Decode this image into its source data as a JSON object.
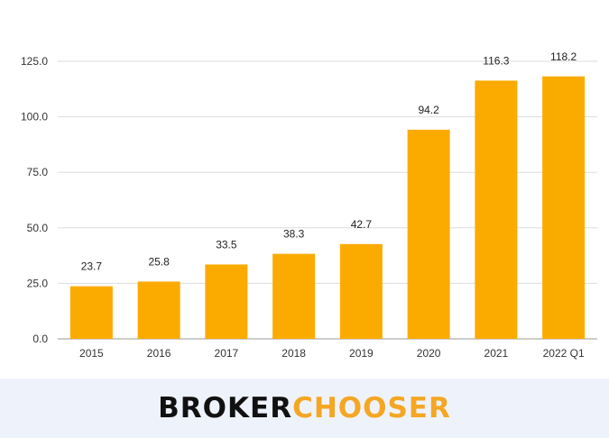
{
  "chart_data": {
    "type": "bar",
    "categories": [
      "2015",
      "2016",
      "2017",
      "2018",
      "2019",
      "2020",
      "2021",
      "2022 Q1"
    ],
    "values": [
      23.7,
      25.8,
      33.5,
      38.3,
      42.7,
      94.2,
      116.3,
      118.2
    ],
    "data_labels": [
      "23.7",
      "25.8",
      "33.5",
      "38.3",
      "42.7",
      "94.2",
      "116.3",
      "118.2"
    ],
    "yticks": [
      "0.0",
      "25.0",
      "50.0",
      "75.0",
      "100.0",
      "125.0"
    ],
    "ytick_values": [
      0,
      25,
      50,
      75,
      100,
      125
    ],
    "ylim": [
      0,
      125
    ],
    "grid": true,
    "legend": "none",
    "bar_color": "#fbab00"
  },
  "footer": {
    "logo_left": "BROKER",
    "logo_right": "CHOOSER",
    "background": "#eef3fb",
    "logo_left_color": "#111111",
    "logo_right_color": "#f5a623"
  }
}
